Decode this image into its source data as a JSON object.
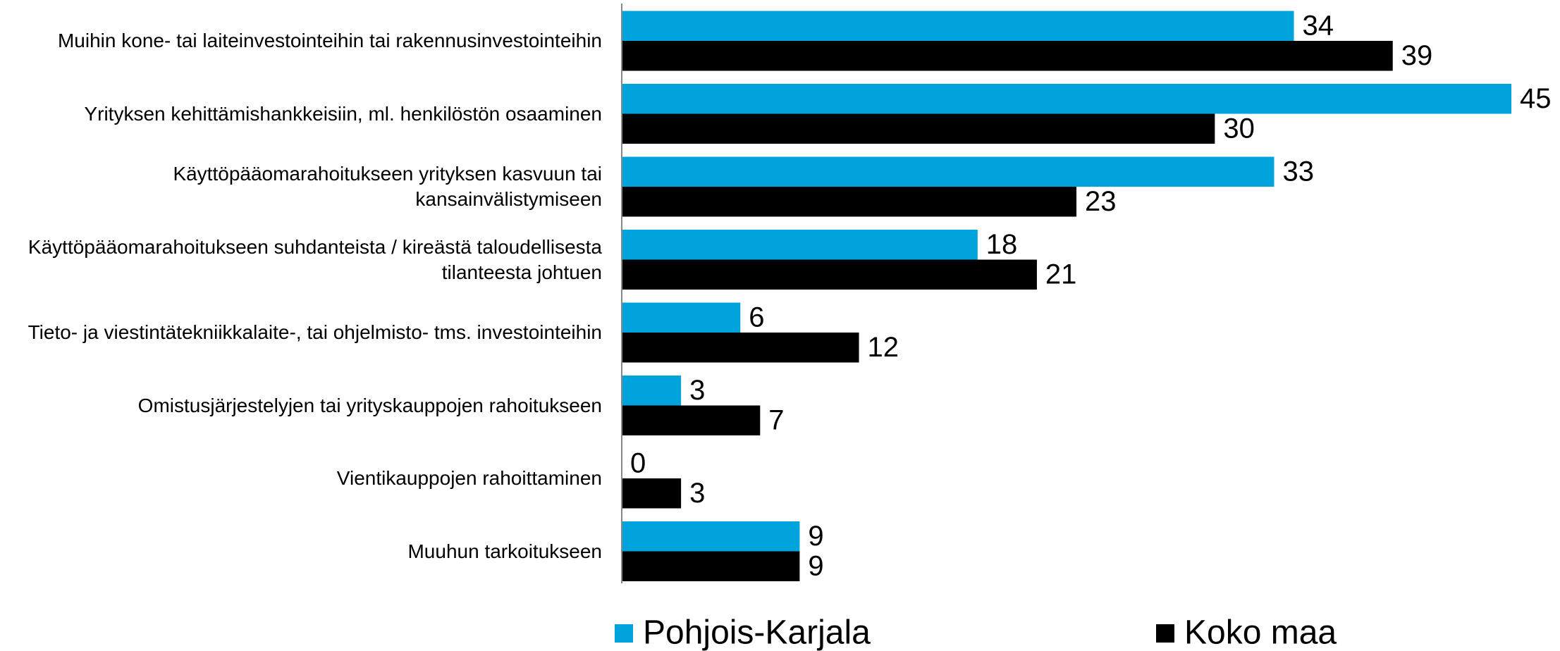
{
  "chart_data": {
    "type": "bar",
    "orientation": "horizontal",
    "categories": [
      "Muihin kone- tai laiteinvestointeihin tai rakennusinvestointeihin",
      "Yrityksen kehittämishankkeisiin, ml. henkilöstön osaaminen",
      "Käyttöpääomarahoitukseen yrityksen kasvuun tai kansainvälistymiseen",
      "Käyttöpääomarahoitukseen suhdanteista / kireästä taloudellisesta tilanteesta johtuen",
      "Tieto- ja viestintätekniikkalaite-, tai ohjelmisto- tms. investointeihin",
      "Omistusjärjestelyjen tai yrityskauppojen rahoitukseen",
      "Vientikauppojen rahoittaminen",
      "Muuhun tarkoitukseen"
    ],
    "series": [
      {
        "name": "Pohjois-Karjala",
        "color": "#00a3dc",
        "values": [
          34,
          45,
          33,
          18,
          6,
          3,
          0,
          9
        ]
      },
      {
        "name": "Koko maa",
        "color": "#000000",
        "values": [
          39,
          30,
          23,
          21,
          12,
          7,
          3,
          9
        ]
      }
    ],
    "legend": "bottom"
  }
}
